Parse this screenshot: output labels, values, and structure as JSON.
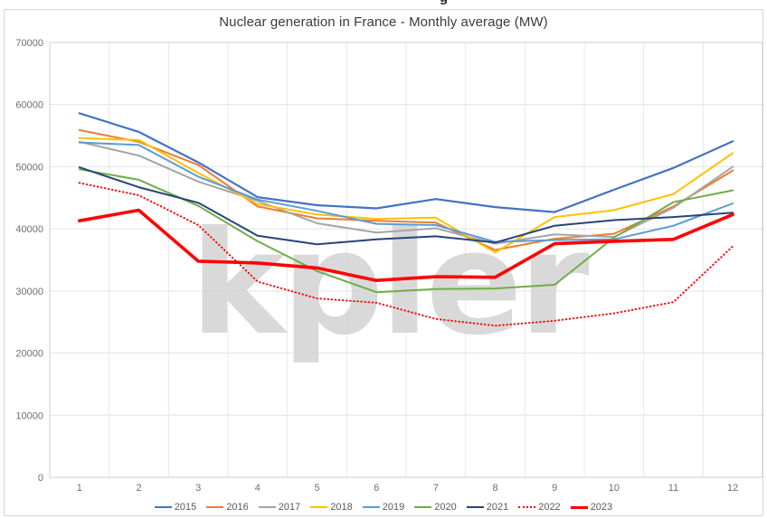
{
  "page": {
    "top_cropped_text": "g"
  },
  "chart_data": {
    "type": "line",
    "title": "Nuclear generation in France - Monthly average (MW)",
    "xlabel": "",
    "ylabel": "",
    "watermark": "kpler",
    "grid": true,
    "legend_position": "bottom",
    "ylim": [
      0,
      70000
    ],
    "y_ticks": [
      0,
      10000,
      20000,
      30000,
      40000,
      50000,
      60000,
      70000
    ],
    "categories": [
      "1",
      "2",
      "3",
      "4",
      "5",
      "6",
      "7",
      "8",
      "9",
      "10",
      "11",
      "12"
    ],
    "series": [
      {
        "name": "2015",
        "color": "#4472C4",
        "style": "solid",
        "width": 2.2,
        "values": [
          58600,
          55600,
          50700,
          45100,
          43800,
          43300,
          44800,
          43500,
          42700,
          46300,
          49800,
          54100
        ]
      },
      {
        "name": "2016",
        "color": "#ED7D31",
        "style": "solid",
        "width": 2,
        "values": [
          55900,
          54000,
          50300,
          43600,
          41700,
          41300,
          41000,
          36600,
          38400,
          39200,
          43600,
          49400
        ]
      },
      {
        "name": "2017",
        "color": "#A5A5A5",
        "style": "solid",
        "width": 2,
        "values": [
          54000,
          51800,
          47600,
          44500,
          40900,
          39400,
          40100,
          37600,
          39100,
          38700,
          43400,
          50000
        ]
      },
      {
        "name": "2018",
        "color": "#FFC000",
        "style": "solid",
        "width": 2,
        "values": [
          54600,
          54300,
          49000,
          44000,
          42300,
          41600,
          41800,
          36200,
          41900,
          43000,
          45600,
          52200
        ]
      },
      {
        "name": "2019",
        "color": "#5B9BD5",
        "style": "solid",
        "width": 2,
        "values": [
          53900,
          53500,
          48400,
          44700,
          42900,
          40800,
          40600,
          37900,
          38200,
          38300,
          40500,
          44100
        ]
      },
      {
        "name": "2020",
        "color": "#70AD47",
        "style": "solid",
        "width": 2,
        "values": [
          49600,
          47900,
          43700,
          38000,
          33200,
          29800,
          30300,
          30400,
          31000,
          38600,
          44300,
          46200
        ]
      },
      {
        "name": "2021",
        "color": "#264478",
        "style": "solid",
        "width": 2,
        "values": [
          49900,
          46700,
          44200,
          38900,
          37500,
          38300,
          38800,
          37800,
          40500,
          41400,
          41900,
          42600
        ]
      },
      {
        "name": "2022",
        "color": "#FF0000",
        "style": "dotted",
        "width": 2,
        "values": [
          47400,
          45400,
          40600,
          31500,
          28800,
          28100,
          25500,
          24400,
          25200,
          26400,
          28200,
          37200
        ]
      },
      {
        "name": "2023",
        "color": "#FF0000",
        "style": "solid",
        "width": 3.6,
        "values": [
          41300,
          43000,
          34800,
          34500,
          33700,
          31700,
          32300,
          32200,
          37600,
          38000,
          38300,
          42300
        ]
      }
    ]
  }
}
